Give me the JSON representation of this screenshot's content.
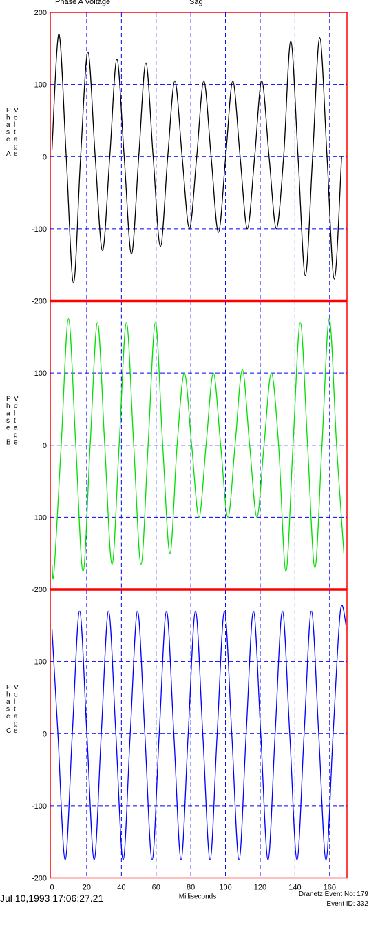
{
  "header": {
    "title": "Phase A Voltage",
    "subtitle": "Sag"
  },
  "footer": {
    "timestamp": "Jul 10,1993 17:06:27.21",
    "event_no": "Dranetz Event No: 179",
    "event_id": "Event ID: 332"
  },
  "chart_data": [
    {
      "type": "line",
      "y_label": "Phase A Voltage",
      "x": [
        0,
        4,
        8.2,
        12.4,
        16.5,
        20.7,
        24.9,
        29.1,
        33.3,
        37.4,
        41.6,
        45.8,
        50,
        54.1,
        58.3,
        62.5,
        66.7,
        70.8,
        75,
        79.2,
        83.4,
        87.5,
        91.7,
        95.9,
        100.1,
        104.2,
        108.4,
        112.6,
        116.8,
        120.9,
        125.1,
        129.3,
        133.5,
        137.6,
        141.8,
        146,
        150.2,
        154.3,
        158.5,
        162.7,
        166.9
      ],
      "series": [
        {
          "color": "#000000",
          "values": [
            10,
            170,
            0,
            -175,
            0,
            145,
            0,
            -130,
            0,
            135,
            0,
            -135,
            0,
            130,
            0,
            -125,
            0,
            105,
            0,
            -100,
            0,
            105,
            0,
            -105,
            0,
            105,
            0,
            -100,
            0,
            105,
            0,
            -100,
            0,
            160,
            0,
            -165,
            0,
            165,
            0,
            -170,
            0
          ]
        }
      ],
      "xlim": [
        -1,
        170
      ],
      "ylim": [
        -200,
        200
      ],
      "xticks": [
        0,
        20,
        40,
        60,
        80,
        100,
        120,
        140,
        160
      ],
      "yticks": [
        -200,
        -100,
        0,
        100,
        200
      ],
      "grid": true
    },
    {
      "type": "line",
      "y_label": "Phase B Voltage",
      "x": [
        0,
        1.2,
        5.3,
        9.5,
        13.7,
        17.9,
        22,
        26.2,
        30.4,
        34.6,
        38.7,
        42.9,
        47.1,
        51.3,
        55.4,
        59.6,
        63.8,
        68,
        72.1,
        76.3,
        80.5,
        84.7,
        88.8,
        93,
        97.2,
        101.4,
        105.5,
        109.7,
        113.9,
        118.1,
        122.2,
        126.4,
        130.6,
        134.8,
        138.9,
        143.1,
        147.3,
        151.5,
        155.6,
        159.8,
        164,
        168.2
      ],
      "series": [
        {
          "color": "#00e000",
          "values": [
            -165,
            -175,
            0,
            175,
            0,
            -175,
            0,
            170,
            0,
            -165,
            0,
            170,
            0,
            -165,
            0,
            170,
            0,
            -150,
            0,
            100,
            0,
            -100,
            0,
            100,
            0,
            -100,
            0,
            105,
            0,
            -100,
            0,
            100,
            0,
            -175,
            0,
            170,
            0,
            -170,
            0,
            175,
            0,
            -150
          ]
        }
      ],
      "xlim": [
        -1,
        170
      ],
      "ylim": [
        -200,
        200
      ],
      "xticks": [
        0,
        20,
        40,
        60,
        80,
        100,
        120,
        140,
        160
      ],
      "yticks": [
        -200,
        -100,
        0,
        100
      ],
      "grid": true
    },
    {
      "type": "line",
      "y_label": "Phase C Voltage",
      "x_label": "Milliseconds",
      "x": [
        0,
        3.4,
        7.6,
        11.7,
        15.9,
        20.1,
        24.3,
        28.4,
        32.6,
        36.8,
        41,
        45.1,
        49.3,
        53.5,
        57.7,
        61.8,
        66,
        70.2,
        74.4,
        78.5,
        82.7,
        86.9,
        91.1,
        95.2,
        99.4,
        103.6,
        107.8,
        111.9,
        116.1,
        120.3,
        124.5,
        128.6,
        132.8,
        137,
        141.2,
        145.3,
        149.5,
        153.7,
        157.9,
        162,
        166.2,
        169.5
      ],
      "series": [
        {
          "color": "#0000ff",
          "values": [
            145,
            0,
            -175,
            0,
            170,
            0,
            -175,
            0,
            170,
            0,
            -175,
            0,
            170,
            0,
            -175,
            0,
            170,
            0,
            -175,
            0,
            170,
            0,
            -175,
            0,
            170,
            0,
            -175,
            0,
            170,
            0,
            -175,
            0,
            170,
            0,
            -175,
            0,
            170,
            0,
            -175,
            0,
            170,
            150
          ]
        }
      ],
      "xlim": [
        -1,
        170
      ],
      "ylim": [
        -200,
        200
      ],
      "xticks": [
        0,
        20,
        40,
        60,
        80,
        100,
        120,
        140,
        160
      ],
      "yticks": [
        -200,
        -100,
        0,
        100
      ],
      "grid": true,
      "show_xtick_labels": true
    }
  ]
}
